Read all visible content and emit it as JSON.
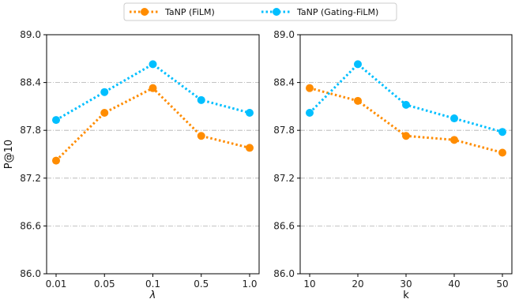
{
  "chart_data": [
    {
      "type": "line",
      "categories": [
        "0.01",
        "0.05",
        "0.1",
        "0.5",
        "1.0"
      ],
      "xlabel": "λ",
      "ylabel": "P@10",
      "ylim": [
        86.0,
        89.0
      ],
      "yticks": [
        "86.0",
        "86.6",
        "87.2",
        "87.8",
        "88.4",
        "89.0"
      ],
      "grid": "dash-dot horizontal",
      "series": [
        {
          "name": "TaNP (FiLM)",
          "color": "#ff8c00",
          "values": [
            87.42,
            88.02,
            88.33,
            87.73,
            87.58
          ]
        },
        {
          "name": "TaNP (Gating-FiLM)",
          "color": "#00bfff",
          "values": [
            87.93,
            88.28,
            88.63,
            88.18,
            88.02
          ]
        }
      ]
    },
    {
      "type": "line",
      "categories": [
        "10",
        "20",
        "30",
        "40",
        "50"
      ],
      "xlabel": "k",
      "ylabel": "",
      "ylim": [
        86.0,
        89.0
      ],
      "yticks": [
        "86.0",
        "86.6",
        "87.2",
        "87.8",
        "88.4",
        "89.0"
      ],
      "grid": "dash-dot horizontal",
      "series": [
        {
          "name": "TaNP (FiLM)",
          "color": "#ff8c00",
          "values": [
            88.33,
            88.17,
            87.73,
            87.68,
            87.52
          ]
        },
        {
          "name": "TaNP (Gating-FiLM)",
          "color": "#00bfff",
          "values": [
            88.02,
            88.63,
            88.12,
            87.95,
            87.78
          ]
        }
      ]
    }
  ],
  "legend": {
    "placement": "top-center",
    "items": [
      {
        "label": "TaNP (FiLM)",
        "color": "#ff8c00"
      },
      {
        "label": "TaNP (Gating-FiLM)",
        "color": "#00bfff"
      }
    ]
  }
}
